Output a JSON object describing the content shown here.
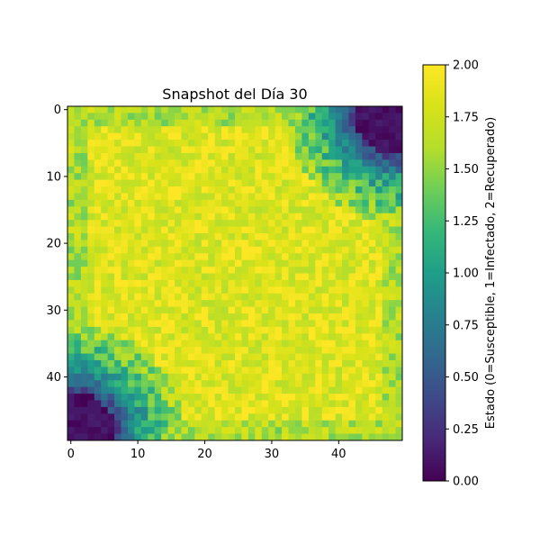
{
  "chart_data": {
    "type": "heatmap",
    "title": "Snapshot del Día 30",
    "grid_size": [
      50,
      50
    ],
    "xlim": [
      -0.5,
      49.5
    ],
    "ylim": [
      49.5,
      -0.5
    ],
    "x_ticks": [
      0,
      10,
      20,
      30,
      40
    ],
    "y_ticks": [
      0,
      10,
      20,
      30,
      40
    ],
    "x_tick_labels": [
      "0",
      "10",
      "20",
      "30",
      "40"
    ],
    "y_tick_labels": [
      "0",
      "10",
      "20",
      "30",
      "40"
    ],
    "colormap": "viridis",
    "colorbar": {
      "label": "Estado (0=Susceptible, 1=Infectado, 2=Recuperado)",
      "range": [
        0.0,
        2.0
      ],
      "ticks": [
        0.0,
        0.25,
        0.5,
        0.75,
        1.0,
        1.25,
        1.5,
        1.75,
        2.0
      ],
      "tick_labels": [
        "0.00",
        "0.25",
        "0.50",
        "0.75",
        "1.00",
        "1.25",
        "1.50",
        "1.75",
        "2.00"
      ]
    },
    "value_field_description": "Values are mostly near 2.0 (recovered) across the grid; value 0 (susceptible) in the top-right corner and bottom-left corner; intermediate values (~0.5-1.5) along the transition bands.",
    "cells_note": "Cell values generated procedurally by the render script to approximate the observed pattern."
  }
}
